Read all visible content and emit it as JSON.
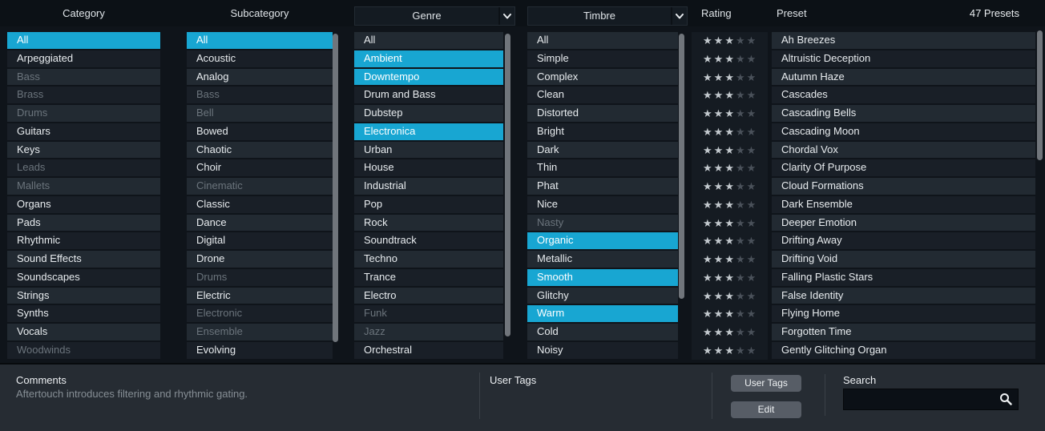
{
  "colors": {
    "accent": "#18a6d2",
    "row_light": "#222a32",
    "row_dark": "#191f27",
    "dimmed_text": "#6b747c",
    "star_filled": "#c3c9ce",
    "star_empty": "#4a515a",
    "footer_bg": "#262c33"
  },
  "header": {
    "category_label": "Category",
    "subcategory_label": "Subcategory",
    "genre_label": "Genre",
    "timbre_label": "Timbre",
    "rating_label": "Rating",
    "preset_label": "Preset",
    "preset_count": "47 Presets",
    "genre_dropdown_icon": "chevron-down-icon",
    "timbre_dropdown_icon": "chevron-down-icon"
  },
  "filters": {
    "category": {
      "items": [
        {
          "label": "All",
          "state": "selected"
        },
        {
          "label": "Arpeggiated",
          "state": "normal"
        },
        {
          "label": "Bass",
          "state": "dimmed"
        },
        {
          "label": "Brass",
          "state": "dimmed"
        },
        {
          "label": "Drums",
          "state": "dimmed"
        },
        {
          "label": "Guitars",
          "state": "normal"
        },
        {
          "label": "Keys",
          "state": "normal"
        },
        {
          "label": "Leads",
          "state": "dimmed"
        },
        {
          "label": "Mallets",
          "state": "dimmed"
        },
        {
          "label": "Organs",
          "state": "normal"
        },
        {
          "label": "Pads",
          "state": "normal"
        },
        {
          "label": "Rhythmic",
          "state": "normal"
        },
        {
          "label": "Sound Effects",
          "state": "normal"
        },
        {
          "label": "Soundscapes",
          "state": "normal"
        },
        {
          "label": "Strings",
          "state": "normal"
        },
        {
          "label": "Synths",
          "state": "normal"
        },
        {
          "label": "Vocals",
          "state": "normal"
        },
        {
          "label": "Woodwinds",
          "state": "dimmed"
        }
      ]
    },
    "subcategory": {
      "items": [
        {
          "label": "All",
          "state": "selected"
        },
        {
          "label": "Acoustic",
          "state": "normal"
        },
        {
          "label": "Analog",
          "state": "normal"
        },
        {
          "label": "Bass",
          "state": "dimmed"
        },
        {
          "label": "Bell",
          "state": "dimmed"
        },
        {
          "label": "Bowed",
          "state": "normal"
        },
        {
          "label": "Chaotic",
          "state": "normal"
        },
        {
          "label": "Choir",
          "state": "normal"
        },
        {
          "label": "Cinematic",
          "state": "dimmed"
        },
        {
          "label": "Classic",
          "state": "normal"
        },
        {
          "label": "Dance",
          "state": "normal"
        },
        {
          "label": "Digital",
          "state": "normal"
        },
        {
          "label": "Drone",
          "state": "normal"
        },
        {
          "label": "Drums",
          "state": "dimmed"
        },
        {
          "label": "Electric",
          "state": "normal"
        },
        {
          "label": "Electronic",
          "state": "dimmed"
        },
        {
          "label": "Ensemble",
          "state": "dimmed"
        },
        {
          "label": "Evolving",
          "state": "normal"
        }
      ]
    },
    "genre": {
      "items": [
        {
          "label": "All",
          "state": "normal"
        },
        {
          "label": "Ambient",
          "state": "selected"
        },
        {
          "label": "Downtempo",
          "state": "selected"
        },
        {
          "label": "Drum and Bass",
          "state": "normal"
        },
        {
          "label": "Dubstep",
          "state": "normal"
        },
        {
          "label": "Electronica",
          "state": "selected"
        },
        {
          "label": "Urban",
          "state": "normal"
        },
        {
          "label": "House",
          "state": "normal"
        },
        {
          "label": "Industrial",
          "state": "normal"
        },
        {
          "label": "Pop",
          "state": "normal"
        },
        {
          "label": "Rock",
          "state": "normal"
        },
        {
          "label": "Soundtrack",
          "state": "normal"
        },
        {
          "label": "Techno",
          "state": "normal"
        },
        {
          "label": "Trance",
          "state": "normal"
        },
        {
          "label": "Electro",
          "state": "normal"
        },
        {
          "label": "Funk",
          "state": "dimmed"
        },
        {
          "label": "Jazz",
          "state": "dimmed"
        },
        {
          "label": "Orchestral",
          "state": "normal"
        }
      ]
    },
    "timbre": {
      "items": [
        {
          "label": "All",
          "state": "normal"
        },
        {
          "label": "Simple",
          "state": "normal"
        },
        {
          "label": "Complex",
          "state": "normal"
        },
        {
          "label": "Clean",
          "state": "normal"
        },
        {
          "label": "Distorted",
          "state": "normal"
        },
        {
          "label": "Bright",
          "state": "normal"
        },
        {
          "label": "Dark",
          "state": "normal"
        },
        {
          "label": "Thin",
          "state": "normal"
        },
        {
          "label": "Phat",
          "state": "normal"
        },
        {
          "label": "Nice",
          "state": "normal"
        },
        {
          "label": "Nasty",
          "state": "dimmed"
        },
        {
          "label": "Organic",
          "state": "selected"
        },
        {
          "label": "Metallic",
          "state": "normal"
        },
        {
          "label": "Smooth",
          "state": "selected"
        },
        {
          "label": "Glitchy",
          "state": "normal"
        },
        {
          "label": "Warm",
          "state": "selected"
        },
        {
          "label": "Cold",
          "state": "normal"
        },
        {
          "label": "Noisy",
          "state": "normal"
        }
      ]
    }
  },
  "presets": {
    "rating_max": 5,
    "items": [
      {
        "name": "Ah Breezes",
        "rating": 3
      },
      {
        "name": "Altruistic Deception",
        "rating": 3
      },
      {
        "name": "Autumn Haze",
        "rating": 3
      },
      {
        "name": "Cascades",
        "rating": 3
      },
      {
        "name": "Cascading Bells",
        "rating": 3
      },
      {
        "name": "Cascading Moon",
        "rating": 3
      },
      {
        "name": "Chordal Vox",
        "rating": 3
      },
      {
        "name": "Clarity Of Purpose",
        "rating": 3
      },
      {
        "name": "Cloud Formations",
        "rating": 3
      },
      {
        "name": "Dark Ensemble",
        "rating": 3
      },
      {
        "name": "Deeper Emotion",
        "rating": 3
      },
      {
        "name": "Drifting Away",
        "rating": 3
      },
      {
        "name": "Drifting Void",
        "rating": 3
      },
      {
        "name": "Falling Plastic Stars",
        "rating": 3
      },
      {
        "name": "False Identity",
        "rating": 3
      },
      {
        "name": "Flying Home",
        "rating": 3
      },
      {
        "name": "Forgotten Time",
        "rating": 3
      },
      {
        "name": "Gently Glitching Organ",
        "rating": 3
      }
    ]
  },
  "footer": {
    "comments_label": "Comments",
    "comments_text": "Aftertouch introduces filtering and rhythmic gating.",
    "user_tags_label": "User Tags",
    "user_tags_button": "User Tags",
    "edit_button": "Edit",
    "search_label": "Search",
    "search_value": "",
    "search_icon": "search-icon"
  }
}
